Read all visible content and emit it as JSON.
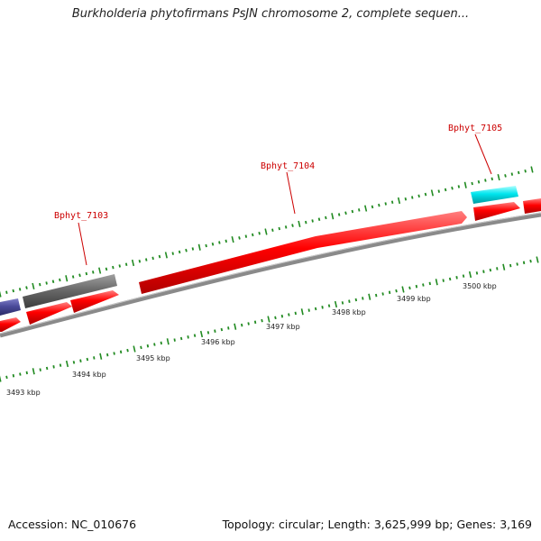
{
  "title": "Burkholderia phytofirmans PsJN chromosome 2, complete sequen...",
  "accession": {
    "label": "Accession:",
    "value": "NC_010676"
  },
  "summary": {
    "topology_label": "Topology:",
    "topology": "circular;",
    "length_label": "Length:",
    "length": "3,625,999 bp;",
    "genes_label": "Genes:",
    "genes": "3,169"
  },
  "colors": {
    "forward_gene": "#ff0000",
    "grey_gene": "#666666",
    "cyan_gene": "#00e5ee",
    "purple_gene": "#4b4b9b",
    "backbone": "#808080",
    "ticks": "#228b22",
    "gene_label": "#cc0000"
  },
  "gene_labels": [
    {
      "id": "g7103",
      "text": "Bphyt_7103"
    },
    {
      "id": "g7104",
      "text": "Bphyt_7104"
    },
    {
      "id": "g7105",
      "text": "Bphyt_7105"
    }
  ],
  "scale_labels": [
    "3493 kbp",
    "3494 kbp",
    "3495 kbp",
    "3496 kbp",
    "3497 kbp",
    "3498 kbp",
    "3499 kbp",
    "3500 kbp"
  ]
}
